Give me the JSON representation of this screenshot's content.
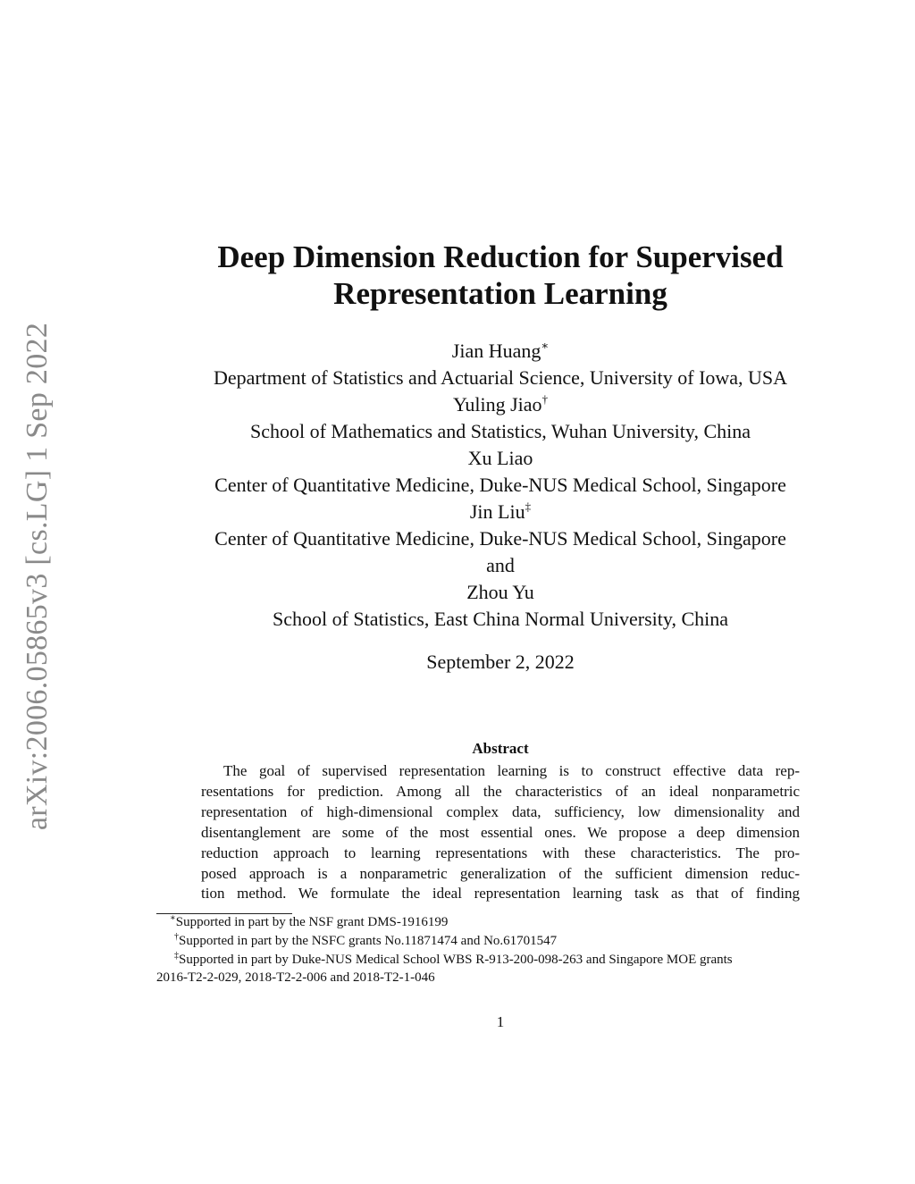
{
  "arxiv_stamp": "arXiv:2006.05865v3  [cs.LG]  1 Sep 2022",
  "title_lines": [
    "Deep Dimension Reduction for Supervised",
    "Representation Learning"
  ],
  "authors": [
    {
      "name": "Jian Huang",
      "mark": "∗",
      "affiliation": "Department of Statistics and Actuarial Science, University of Iowa, USA"
    },
    {
      "name": "Yuling Jiao",
      "mark": "†",
      "affiliation": "School of Mathematics and Statistics, Wuhan University, China"
    },
    {
      "name": "Xu Liao",
      "mark": "",
      "affiliation": "Center of Quantitative Medicine, Duke-NUS Medical School, Singapore"
    },
    {
      "name": "Jin Liu",
      "mark": "‡",
      "affiliation": "Center of Quantitative Medicine, Duke-NUS Medical School, Singapore"
    },
    {
      "name": "Zhou Yu",
      "mark": "",
      "affiliation": "School of Statistics, East China Normal University, China"
    }
  ],
  "and": "and",
  "date": "September 2, 2022",
  "abstract": {
    "heading": "Abstract",
    "lines": [
      "The goal of supervised representation learning is to construct effective data rep-",
      "resentations for prediction. Among all the characteristics of an ideal nonparametric",
      "representation of high-dimensional complex data, sufficiency, low dimensionality and",
      "disentanglement are some of the most essential ones. We propose a deep dimension",
      "reduction approach to learning representations with these characteristics. The pro-",
      "posed approach is a nonparametric generalization of the sufficient dimension reduc-",
      "tion method. We formulate the ideal representation learning task as that of finding"
    ]
  },
  "footnotes": [
    {
      "mark": "∗",
      "text": "Supported in part by the NSF grant DMS-1916199"
    },
    {
      "mark": "†",
      "text": "Supported in part by the NSFC grants No.11871474 and No.61701547"
    },
    {
      "mark": "‡",
      "text": "Supported in part by Duke-NUS Medical School WBS R-913-200-098-263 and Singapore MOE grants"
    },
    {
      "mark": "",
      "text": "2016-T2-2-029, 2018-T2-2-006 and 2018-T2-1-046"
    }
  ],
  "page_number": "1"
}
